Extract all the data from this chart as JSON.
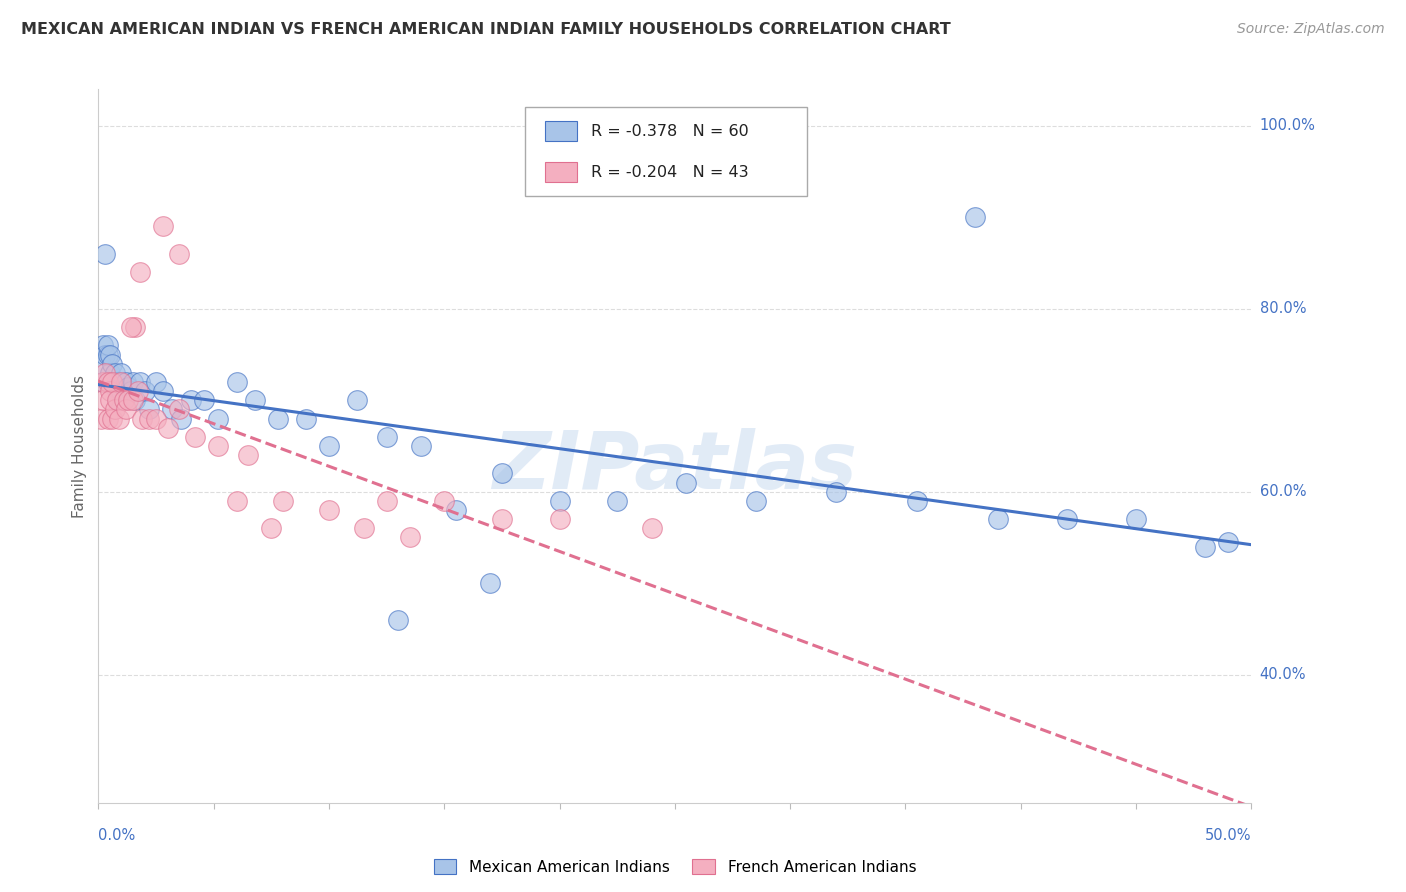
{
  "title": "MEXICAN AMERICAN INDIAN VS FRENCH AMERICAN INDIAN FAMILY HOUSEHOLDS CORRELATION CHART",
  "source": "Source: ZipAtlas.com",
  "ylabel": "Family Households",
  "legend1_label": "Mexican American Indians",
  "legend2_label": "French American Indians",
  "r1": "-0.378",
  "n1": "60",
  "r2": "-0.204",
  "n2": "43",
  "blue_color": "#a8c4e8",
  "pink_color": "#f4afc0",
  "blue_line_color": "#4472C4",
  "pink_line_color": "#e07090",
  "watermark": "ZIPatlas",
  "x_min": 0.0,
  "x_max": 0.5,
  "y_min": 0.26,
  "y_max": 1.04,
  "blue_x": [
    0.001,
    0.002,
    0.002,
    0.003,
    0.003,
    0.004,
    0.004,
    0.005,
    0.005,
    0.005,
    0.006,
    0.006,
    0.007,
    0.007,
    0.008,
    0.008,
    0.009,
    0.009,
    0.01,
    0.01,
    0.011,
    0.012,
    0.013,
    0.014,
    0.015,
    0.016,
    0.018,
    0.02,
    0.022,
    0.025,
    0.028,
    0.032,
    0.036,
    0.04,
    0.046,
    0.052,
    0.06,
    0.068,
    0.078,
    0.09,
    0.1,
    0.112,
    0.125,
    0.14,
    0.155,
    0.175,
    0.2,
    0.225,
    0.255,
    0.285,
    0.32,
    0.355,
    0.39,
    0.42,
    0.45,
    0.48,
    0.38,
    0.17,
    0.13,
    0.49
  ],
  "blue_y": [
    0.74,
    0.76,
    0.72,
    0.75,
    0.86,
    0.75,
    0.76,
    0.75,
    0.72,
    0.73,
    0.74,
    0.72,
    0.73,
    0.715,
    0.72,
    0.7,
    0.71,
    0.72,
    0.73,
    0.71,
    0.7,
    0.72,
    0.715,
    0.71,
    0.72,
    0.7,
    0.72,
    0.71,
    0.69,
    0.72,
    0.71,
    0.69,
    0.68,
    0.7,
    0.7,
    0.68,
    0.72,
    0.7,
    0.68,
    0.68,
    0.65,
    0.7,
    0.66,
    0.65,
    0.58,
    0.62,
    0.59,
    0.59,
    0.61,
    0.59,
    0.6,
    0.59,
    0.57,
    0.57,
    0.57,
    0.54,
    0.9,
    0.5,
    0.46,
    0.545
  ],
  "pink_x": [
    0.001,
    0.002,
    0.002,
    0.003,
    0.004,
    0.004,
    0.005,
    0.005,
    0.006,
    0.006,
    0.007,
    0.008,
    0.009,
    0.01,
    0.011,
    0.012,
    0.013,
    0.015,
    0.017,
    0.019,
    0.022,
    0.025,
    0.03,
    0.035,
    0.042,
    0.052,
    0.065,
    0.08,
    0.1,
    0.125,
    0.15,
    0.175,
    0.2,
    0.24,
    0.115,
    0.135,
    0.06,
    0.075,
    0.035,
    0.028,
    0.018,
    0.016,
    0.014
  ],
  "pink_y": [
    0.68,
    0.72,
    0.7,
    0.73,
    0.68,
    0.72,
    0.71,
    0.7,
    0.72,
    0.68,
    0.69,
    0.7,
    0.68,
    0.72,
    0.7,
    0.69,
    0.7,
    0.7,
    0.71,
    0.68,
    0.68,
    0.68,
    0.67,
    0.69,
    0.66,
    0.65,
    0.64,
    0.59,
    0.58,
    0.59,
    0.59,
    0.57,
    0.57,
    0.56,
    0.56,
    0.55,
    0.59,
    0.56,
    0.86,
    0.89,
    0.84,
    0.78,
    0.78
  ]
}
